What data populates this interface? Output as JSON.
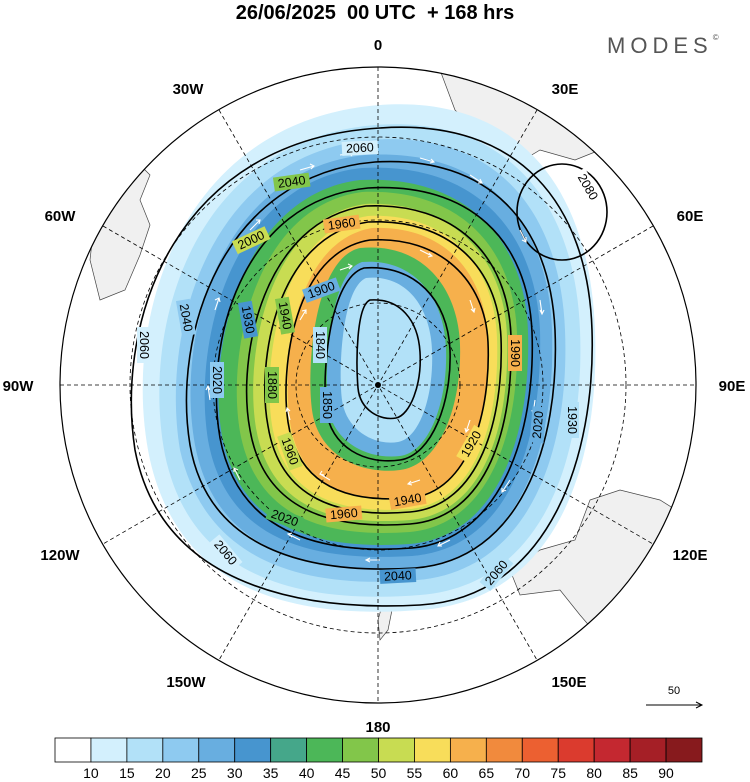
{
  "header": {
    "title": "26/06/2025  00 UTC  + 168 hrs",
    "brand": "MODES",
    "brand_mark": "©"
  },
  "map": {
    "projection": "south polar stereographic",
    "longitude_labels": {
      "top": "0",
      "top_right": "30E",
      "right_upper": "60E",
      "right": "90E",
      "right_lower": "120E",
      "bottom_right": "150E",
      "bottom": "180",
      "bottom_left": "150W",
      "left_lower": "120W",
      "left": "90W",
      "left_upper": "60W",
      "top_left": "30W"
    },
    "contour_labels": [
      "2060",
      "2040",
      "2000",
      "1960",
      "1900",
      "1940",
      "1930",
      "1840",
      "1880",
      "1850",
      "2020",
      "1960",
      "1920",
      "1940",
      "1960",
      "2020",
      "2040",
      "2060",
      "2060",
      "2060",
      "2040",
      "2020",
      "1990",
      "1930",
      "2080"
    ],
    "wind_reference": "50",
    "colors": {
      "land": "#f0f0f0",
      "contour": "#000000",
      "vector": "#ffffff"
    }
  },
  "colorbar": {
    "levels": [
      "10",
      "15",
      "20",
      "25",
      "30",
      "35",
      "40",
      "45",
      "50",
      "55",
      "60",
      "65",
      "70",
      "75",
      "80",
      "85",
      "90"
    ],
    "colors": [
      "#ffffff",
      "#d3f0fd",
      "#b2e1f8",
      "#8ecaf0",
      "#68aee0",
      "#4795cf",
      "#45a78a",
      "#4cb758",
      "#82c64a",
      "#c8dc52",
      "#f8dd5a",
      "#f6b04c",
      "#f18a3d",
      "#ec6031",
      "#db3b2e",
      "#c42830",
      "#a51f26",
      "#871a1d"
    ]
  }
}
